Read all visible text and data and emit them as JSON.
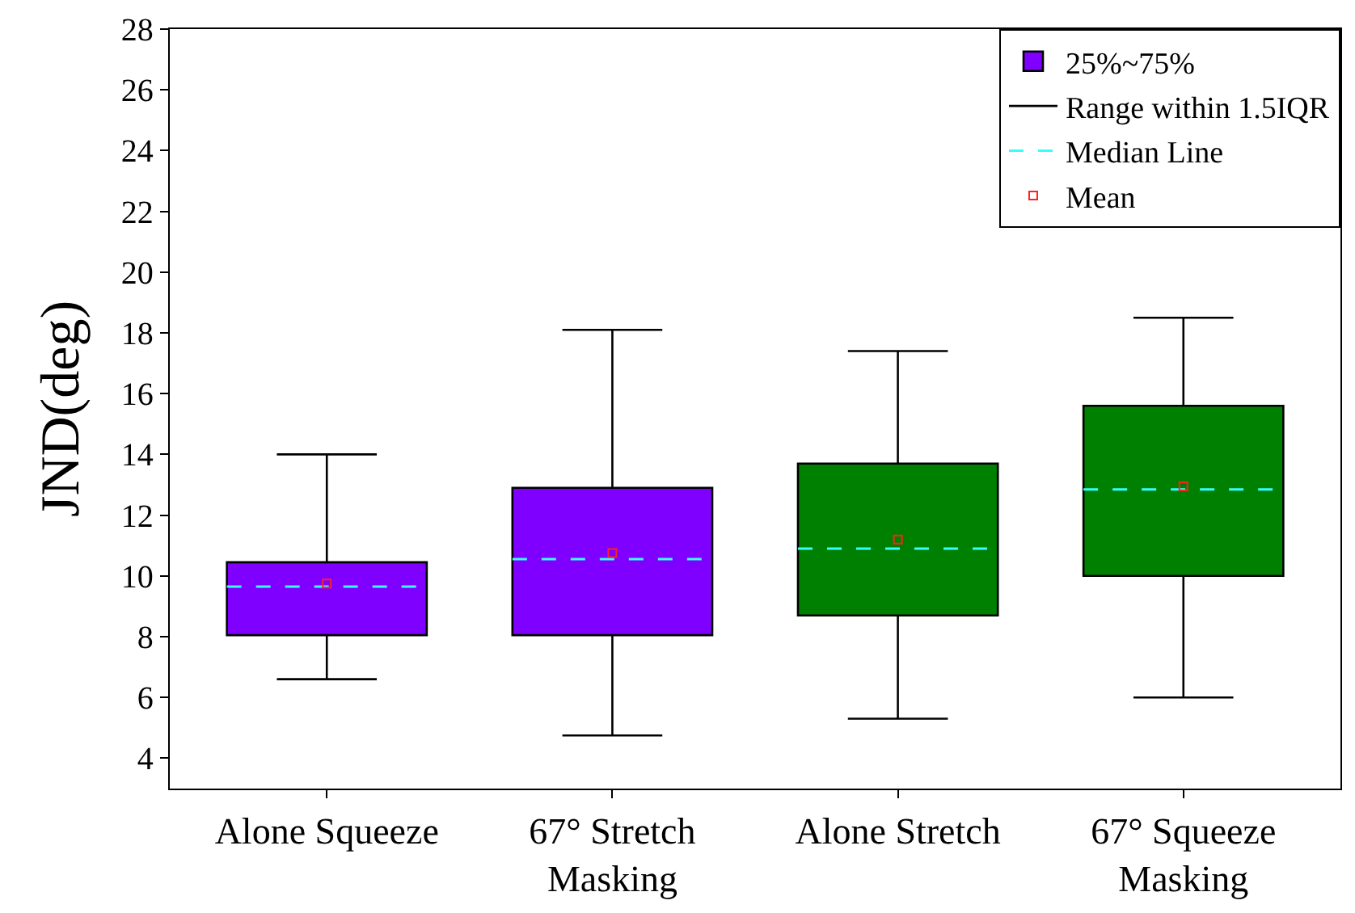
{
  "chart_data": {
    "type": "box",
    "ylabel": "JND(deg)",
    "categories": [
      "Alone Squeeze",
      "67° Stretch\nMasking",
      "Alone Stretch",
      "67° Squeeze\nMasking"
    ],
    "series": [
      {
        "name": "25%~75%",
        "colors": [
          "#8000ff",
          "#8000ff",
          "#008000",
          "#008000"
        ],
        "boxes": [
          {
            "low": 6.6,
            "q1": 8.05,
            "median": 9.65,
            "q3": 10.45,
            "high": 14.0
          },
          {
            "low": 4.75,
            "q1": 8.05,
            "median": 10.55,
            "q3": 12.9,
            "high": 18.1
          },
          {
            "low": 5.3,
            "q1": 8.7,
            "median": 10.9,
            "q3": 13.7,
            "high": 17.4
          },
          {
            "low": 6.0,
            "q1": 10.0,
            "median": 12.85,
            "q3": 15.6,
            "high": 18.5
          }
        ]
      },
      {
        "type": "scatter",
        "name": "Mean",
        "color": "#ff2020",
        "values": [
          9.75,
          10.75,
          11.2,
          12.95
        ]
      }
    ],
    "annotations": [
      "Range within 1.5IQR",
      "Median Line"
    ],
    "ylim": [
      3,
      28
    ],
    "yticks": [
      4,
      6,
      8,
      10,
      12,
      14,
      16,
      18,
      20,
      22,
      24,
      26,
      28
    ],
    "legend": "top right",
    "marker": "square",
    "line_style": "dashed"
  }
}
